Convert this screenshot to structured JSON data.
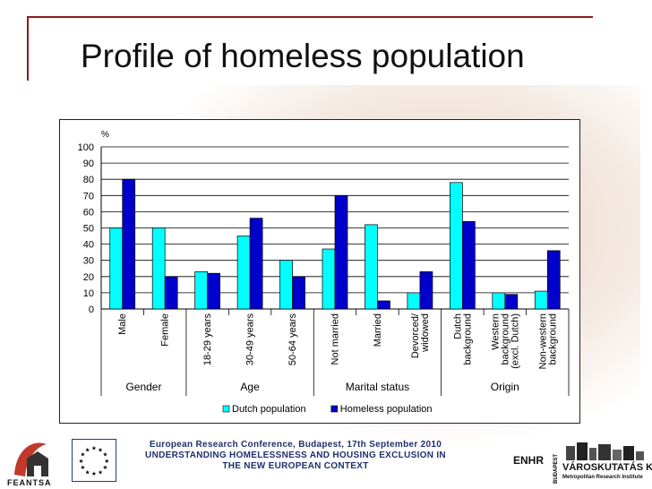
{
  "slide": {
    "title": "Profile of homeless population",
    "footer": {
      "line1": "European Research Conference, Budapest, 17th September 2010",
      "line2": "UNDERSTANDING HOMELESSNESS AND HOUSING EXCLUSION IN",
      "line3": "THE NEW EUROPEAN CONTEXT"
    },
    "logos": {
      "feantsa": "FEANTSA",
      "enhr": "ENHR",
      "varoskutatas_vertical": "BUDAPEST",
      "varoskutatas_name": "VÁROSKUTATÁS KFT",
      "varoskutatas_sub": "Metropolitan Research Institute"
    }
  },
  "colors": {
    "dutch": "#00ffff",
    "homeless": "#0000cc",
    "title_rule": "#8b1a1a",
    "footer_text": "#1f2f6e"
  },
  "chart_data": {
    "type": "bar",
    "ylabel": "%",
    "ylim": [
      0,
      100
    ],
    "yticks": [
      0,
      10,
      20,
      30,
      40,
      50,
      60,
      70,
      80,
      90,
      100
    ],
    "grid": true,
    "categories": [
      "Male",
      "Female",
      "18-29 years",
      "30-49 years",
      "50-64 years",
      "Not married",
      "Married",
      "Devorced/ widowed",
      "Dutch background",
      "Western background (excl. Dutch)",
      "Non-western background"
    ],
    "category_labels": [
      [
        "Male"
      ],
      [
        "Female"
      ],
      [
        "18-29 years"
      ],
      [
        "30-49 years"
      ],
      [
        "50-64 years"
      ],
      [
        "Not married"
      ],
      [
        "Married"
      ],
      [
        "Devorced/",
        "widowed"
      ],
      [
        "Dutch",
        "background"
      ],
      [
        "Western",
        "background",
        "(excl. Dutch)"
      ],
      [
        "Non-western",
        "background"
      ]
    ],
    "groups": [
      {
        "name": "Gender",
        "count": 2
      },
      {
        "name": "Age",
        "count": 3
      },
      {
        "name": "Marital status",
        "count": 3
      },
      {
        "name": "Origin",
        "count": 3
      }
    ],
    "series": [
      {
        "name": "Dutch population",
        "values": [
          50,
          50,
          23,
          45,
          30,
          37,
          52,
          10,
          78,
          10,
          11
        ]
      },
      {
        "name": "Homeless population",
        "values": [
          80,
          20,
          22,
          56,
          20,
          70,
          5,
          23,
          54,
          9,
          36
        ]
      }
    ],
    "legend_position": "bottom"
  }
}
